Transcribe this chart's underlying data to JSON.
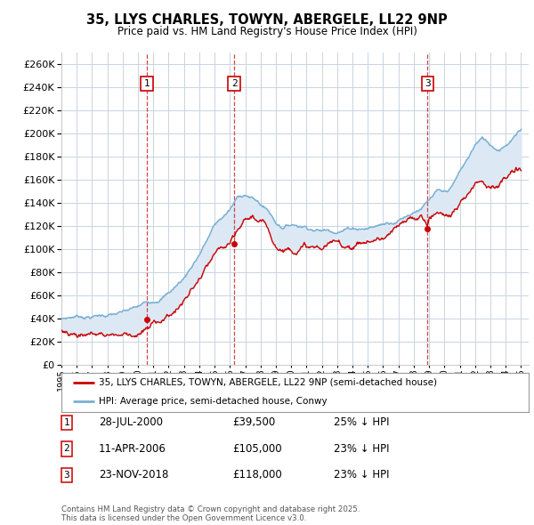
{
  "title": "35, LLYS CHARLES, TOWYN, ABERGELE, LL22 9NP",
  "subtitle": "Price paid vs. HM Land Registry's House Price Index (HPI)",
  "ylim": [
    0,
    270000
  ],
  "yticks": [
    0,
    20000,
    40000,
    60000,
    80000,
    100000,
    120000,
    140000,
    160000,
    180000,
    200000,
    220000,
    240000,
    260000
  ],
  "legend_label_red": "35, LLYS CHARLES, TOWYN, ABERGELE, LL22 9NP (semi-detached house)",
  "legend_label_blue": "HPI: Average price, semi-detached house, Conwy",
  "footnote": "Contains HM Land Registry data © Crown copyright and database right 2025.\nThis data is licensed under the Open Government Licence v3.0.",
  "transactions": [
    {
      "num": 1,
      "date": "28-JUL-2000",
      "price": 39500,
      "hpi_pct": "25% ↓ HPI",
      "year": 2000.57
    },
    {
      "num": 2,
      "date": "11-APR-2006",
      "price": 105000,
      "hpi_pct": "23% ↓ HPI",
      "year": 2006.28
    },
    {
      "num": 3,
      "date": "23-NOV-2018",
      "price": 118000,
      "hpi_pct": "23% ↓ HPI",
      "year": 2018.9
    }
  ],
  "red_color": "#cc0000",
  "blue_color": "#7bafd4",
  "fill_color": "#dce9f5",
  "dashed_color": "#cc3333",
  "box_color": "#cc0000",
  "plot_bg": "#ffffff",
  "grid_color": "#c8d4e0"
}
